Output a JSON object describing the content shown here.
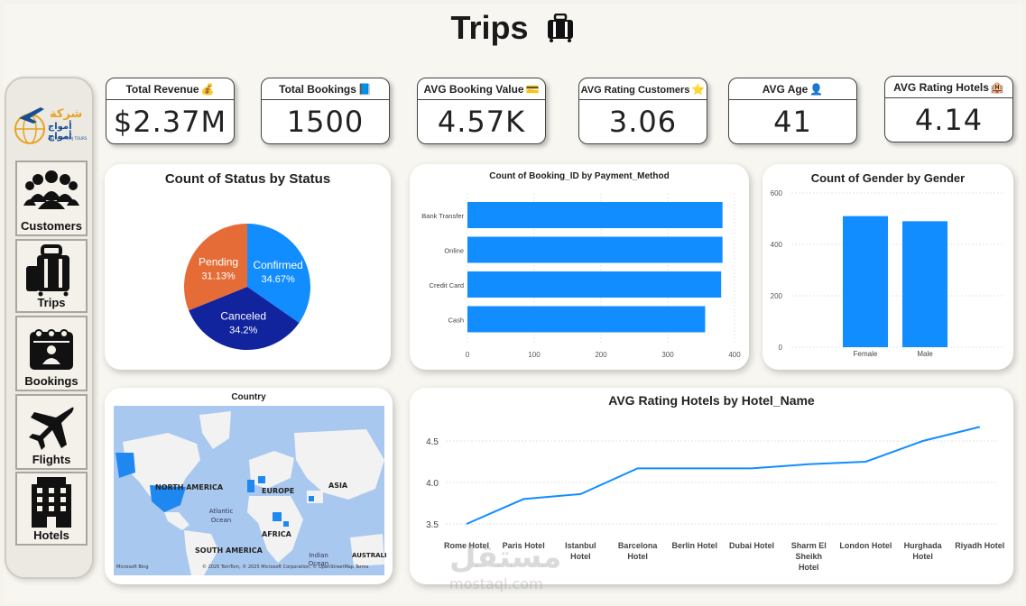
{
  "page": {
    "title": "Trips"
  },
  "sidebar": {
    "logo_text": "شركة",
    "logo_sub": "أمواج أمواج",
    "logo_caption": "ASTRA AMWAJ TOURS",
    "items": [
      {
        "label": "Customers",
        "icon": "people-group-icon"
      },
      {
        "label": "Trips",
        "icon": "suitcase-icon"
      },
      {
        "label": "Bookings",
        "icon": "calendar-person-icon"
      },
      {
        "label": "Flights",
        "icon": "airplane-icon"
      },
      {
        "label": "Hotels",
        "icon": "hotel-building-icon"
      }
    ]
  },
  "kpis": [
    {
      "label": "Total Revenue",
      "value": "$2.37M",
      "icon": "money-bag-icon"
    },
    {
      "label": "Total Bookings",
      "value": "1500",
      "icon": "book-icon"
    },
    {
      "label": "AVG Booking Value",
      "value": "4.57K",
      "icon": "credit-card-icon"
    },
    {
      "label": "AVG Rating Customers",
      "value": "3.06",
      "icon": "star-icon"
    },
    {
      "label": "AVG Age",
      "value": "41",
      "icon": "person-icon"
    },
    {
      "label": "AVG Rating Hotels",
      "value": "4.14",
      "icon": "hotel-icon"
    }
  ],
  "status_chart": {
    "title": "Count of Status by Status",
    "slices": [
      {
        "label": "Confirmed",
        "pct": "34.67%",
        "value": 34.67,
        "color": "#118dff"
      },
      {
        "label": "Canceled",
        "pct": "34.2%",
        "value": 34.2,
        "color": "#12239e"
      },
      {
        "label": "Pending",
        "pct": "31.13%",
        "value": 31.13,
        "color": "#e66c37"
      }
    ]
  },
  "payment_chart": {
    "title": "Count of Booking_ID by Payment_Method",
    "categories": [
      "Bank Transfer",
      "Online",
      "Credit Card",
      "Cash"
    ],
    "values": [
      382,
      382,
      380,
      356
    ],
    "ticks": [
      "0",
      "100",
      "200",
      "300",
      "400"
    ]
  },
  "gender_chart": {
    "title": "Count of Gender by Gender",
    "categories": [
      "Female",
      "Male"
    ],
    "values": [
      510,
      490
    ],
    "ticks": [
      "0",
      "200",
      "400",
      "600"
    ]
  },
  "map": {
    "title": "Country",
    "labels": [
      "NORTH AMERICA",
      "EUROPE",
      "ASIA",
      "Atlantic Ocean",
      "AFRICA",
      "SOUTH AMERICA",
      "Indian Ocean",
      "AUSTRALI"
    ],
    "footer_brand": "Microsoft Bing",
    "footer_credit": "© 2025 TomTom, © 2025 Microsoft Corporation, © OpenStreetMap  Terms"
  },
  "hotel_chart": {
    "title": "AVG Rating Hotels by Hotel_Name",
    "categories": [
      "Rome Hotel",
      "Paris Hotel",
      "Istanbul Hotel",
      "Barcelona Hotel",
      "Berlin Hotel",
      "Dubai Hotel",
      "Sharm El Sheikh Hotel",
      "London Hotel",
      "Hurghada Hotel",
      "Riyadh Hotel"
    ],
    "values": [
      3.5,
      3.8,
      3.86,
      4.17,
      4.17,
      4.17,
      4.22,
      4.25,
      4.5,
      4.67
    ],
    "ticks": [
      "3.5",
      "4.0",
      "4.5"
    ]
  },
  "watermark": {
    "text": "مستقل",
    "sub": "mostaql.com"
  },
  "chart_data": [
    {
      "type": "pie",
      "title": "Count of Status by Status",
      "categories": [
        "Confirmed",
        "Canceled",
        "Pending"
      ],
      "values": [
        34.67,
        34.2,
        31.13
      ]
    },
    {
      "type": "bar",
      "title": "Count of Booking_ID by Payment_Method",
      "categories": [
        "Bank Transfer",
        "Online",
        "Credit Card",
        "Cash"
      ],
      "values": [
        382,
        382,
        380,
        356
      ],
      "xlim": [
        0,
        400
      ],
      "orientation": "horizontal"
    },
    {
      "type": "bar",
      "title": "Count of Gender by Gender",
      "categories": [
        "Female",
        "Male"
      ],
      "values": [
        510,
        490
      ],
      "ylim": [
        0,
        600
      ]
    },
    {
      "type": "line",
      "title": "AVG Rating Hotels by Hotel_Name",
      "categories": [
        "Rome Hotel",
        "Paris Hotel",
        "Istanbul Hotel",
        "Barcelona Hotel",
        "Berlin Hotel",
        "Dubai Hotel",
        "Sharm El Sheikh Hotel",
        "London Hotel",
        "Hurghada Hotel",
        "Riyadh Hotel"
      ],
      "values": [
        3.5,
        3.8,
        3.86,
        4.17,
        4.17,
        4.17,
        4.22,
        4.25,
        4.5,
        4.67
      ],
      "ylim": [
        3.4,
        4.8
      ]
    }
  ]
}
